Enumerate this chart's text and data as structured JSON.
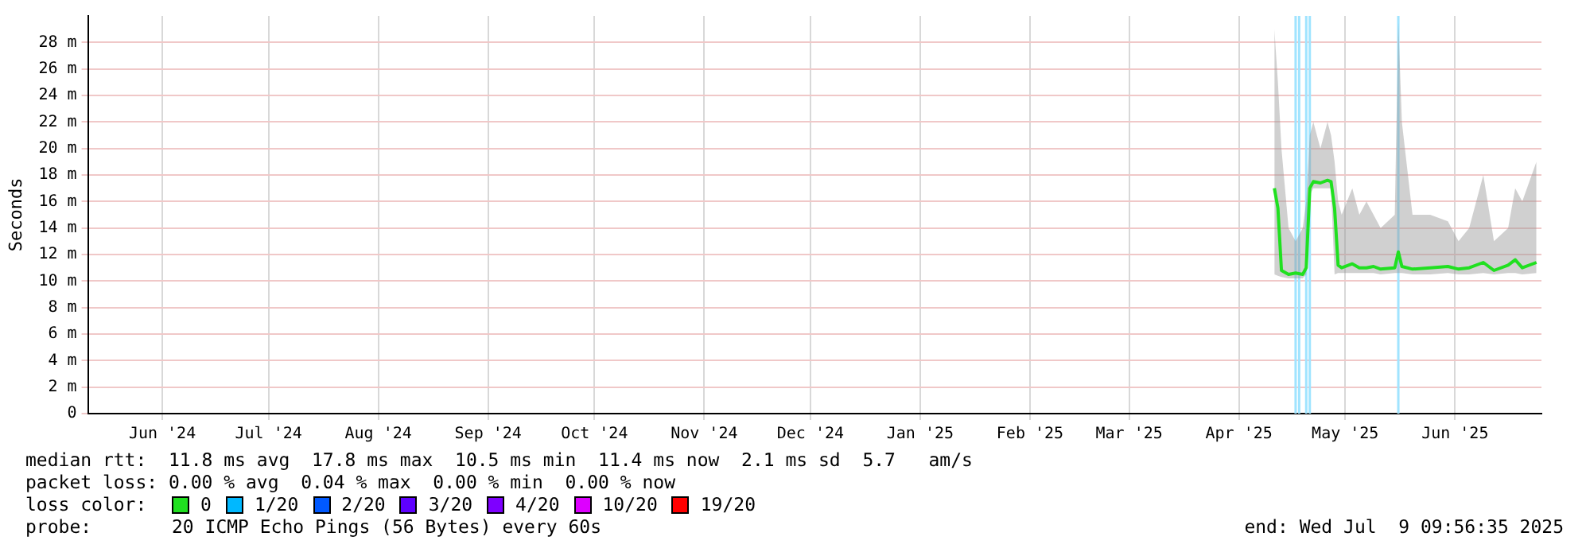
{
  "chart_data": {
    "type": "line",
    "ylabel": "Seconds",
    "xlim": [
      "2024-05-25",
      "2025-07-09T09:56"
    ],
    "xticks": [
      {
        "value": "2024-06-15",
        "label": "Jun '24"
      },
      {
        "value": "2024-07-15",
        "label": "Jul '24"
      },
      {
        "value": "2024-08-15",
        "label": "Aug '24"
      },
      {
        "value": "2024-09-15",
        "label": "Sep '24"
      },
      {
        "value": "2024-10-15",
        "label": "Oct '24"
      },
      {
        "value": "2024-11-15",
        "label": "Nov '24"
      },
      {
        "value": "2024-12-15",
        "label": "Dec '24"
      },
      {
        "value": "2025-01-15",
        "label": "Jan '25"
      },
      {
        "value": "2025-02-15",
        "label": "Feb '25"
      },
      {
        "value": "2025-03-15",
        "label": "Mar '25"
      },
      {
        "value": "2025-04-15",
        "label": "Apr '25"
      },
      {
        "value": "2025-05-15",
        "label": "May '25"
      },
      {
        "value": "2025-06-15",
        "label": "Jun '25"
      }
    ],
    "ylim": [
      0,
      30
    ],
    "yticks": [
      0,
      {
        "value": 2,
        "label": "2 m"
      },
      {
        "value": 4,
        "label": "4 m"
      },
      {
        "value": 6,
        "label": "6 m"
      },
      {
        "value": 8,
        "label": "8 m"
      },
      {
        "value": 10,
        "label": "10 m"
      },
      {
        "value": 12,
        "label": "12 m"
      },
      {
        "value": 14,
        "label": "14 m"
      },
      {
        "value": 16,
        "label": "16 m"
      },
      {
        "value": 18,
        "label": "18 m"
      },
      {
        "value": 20,
        "label": "20 m"
      },
      {
        "value": 22,
        "label": "22 m"
      },
      {
        "value": 24,
        "label": "24 m"
      },
      {
        "value": 26,
        "label": "26 m"
      },
      {
        "value": 28,
        "label": "28 m"
      }
    ],
    "grid": true,
    "legend": false,
    "marker": "none",
    "line_style": "solid",
    "x": [
      "2025-04-25",
      "2025-04-26",
      "2025-04-27",
      "2025-04-29",
      "2025-05-01",
      "2025-05-03",
      "2025-05-04",
      "2025-05-05",
      "2025-05-06",
      "2025-05-08",
      "2025-05-10",
      "2025-05-11",
      "2025-05-12",
      "2025-05-13",
      "2025-05-14",
      "2025-05-17",
      "2025-05-19",
      "2025-05-21",
      "2025-05-23",
      "2025-05-25",
      "2025-05-29",
      "2025-05-30",
      "2025-05-31",
      "2025-06-03",
      "2025-06-08",
      "2025-06-13",
      "2025-06-16",
      "2025-06-19",
      "2025-06-23",
      "2025-06-26",
      "2025-06-30",
      "2025-07-02",
      "2025-07-04",
      "2025-07-08"
    ],
    "series": [
      {
        "color": "#20e020",
        "values": [
          17,
          15.5,
          10.8,
          10.5,
          10.6,
          10.5,
          11,
          17,
          17.5,
          17.4,
          17.6,
          17.5,
          15.5,
          11.2,
          11,
          11.3,
          11,
          11,
          11.1,
          10.9,
          11,
          12.2,
          11.1,
          10.9,
          11,
          11.1,
          10.9,
          11,
          11.4,
          10.8,
          11.2,
          11.6,
          11,
          11.4
        ],
        "lower": [
          10.5,
          10.4,
          10.3,
          10.2,
          10.2,
          10.2,
          10.5,
          16.5,
          17,
          17,
          17,
          17,
          10.5,
          10.6,
          10.6,
          10.6,
          10.6,
          10.6,
          10.6,
          10.5,
          10.6,
          10.6,
          10.6,
          10.5,
          10.5,
          10.6,
          10.5,
          10.5,
          10.6,
          10.5,
          10.6,
          10.6,
          10.5,
          10.6
        ],
        "upper": [
          29,
          25,
          20,
          14,
          13,
          14,
          16,
          21,
          22,
          20,
          22,
          21,
          19,
          16,
          15,
          17,
          15,
          16,
          15,
          14,
          15,
          29.5,
          22,
          15,
          15,
          14.5,
          13,
          14,
          18,
          13,
          14,
          17,
          16,
          19
        ]
      }
    ],
    "ref_lines": [
      {
        "axis": "x",
        "value": "2025-05-01",
        "color": "#a0e4ff"
      },
      {
        "axis": "x",
        "value": "2025-05-02",
        "color": "#a0e4ff"
      },
      {
        "axis": "x",
        "value": "2025-05-04",
        "color": "#a0e4ff"
      },
      {
        "axis": "x",
        "value": "2025-05-05",
        "color": "#a0e4ff"
      },
      {
        "axis": "x",
        "value": "2025-05-30",
        "color": "#a0e4ff"
      }
    ],
    "annotations": [
      "median rtt:  11.8 ms avg  17.8 ms max  10.5 ms min  11.4 ms now  2.1 ms sd  5.7   am/s",
      "packet loss: 0.00 % avg  0.04 % max  0.00 % min  0.00 % now",
      "loss color:",
      "0",
      "1/20",
      "2/20",
      "3/20",
      "4/20",
      "10/20",
      "19/20",
      "probe:",
      "20 ICMP Echo Pings (56 Bytes) every 60s",
      "end: Wed Jul  9 09:56:35 2025"
    ]
  }
}
